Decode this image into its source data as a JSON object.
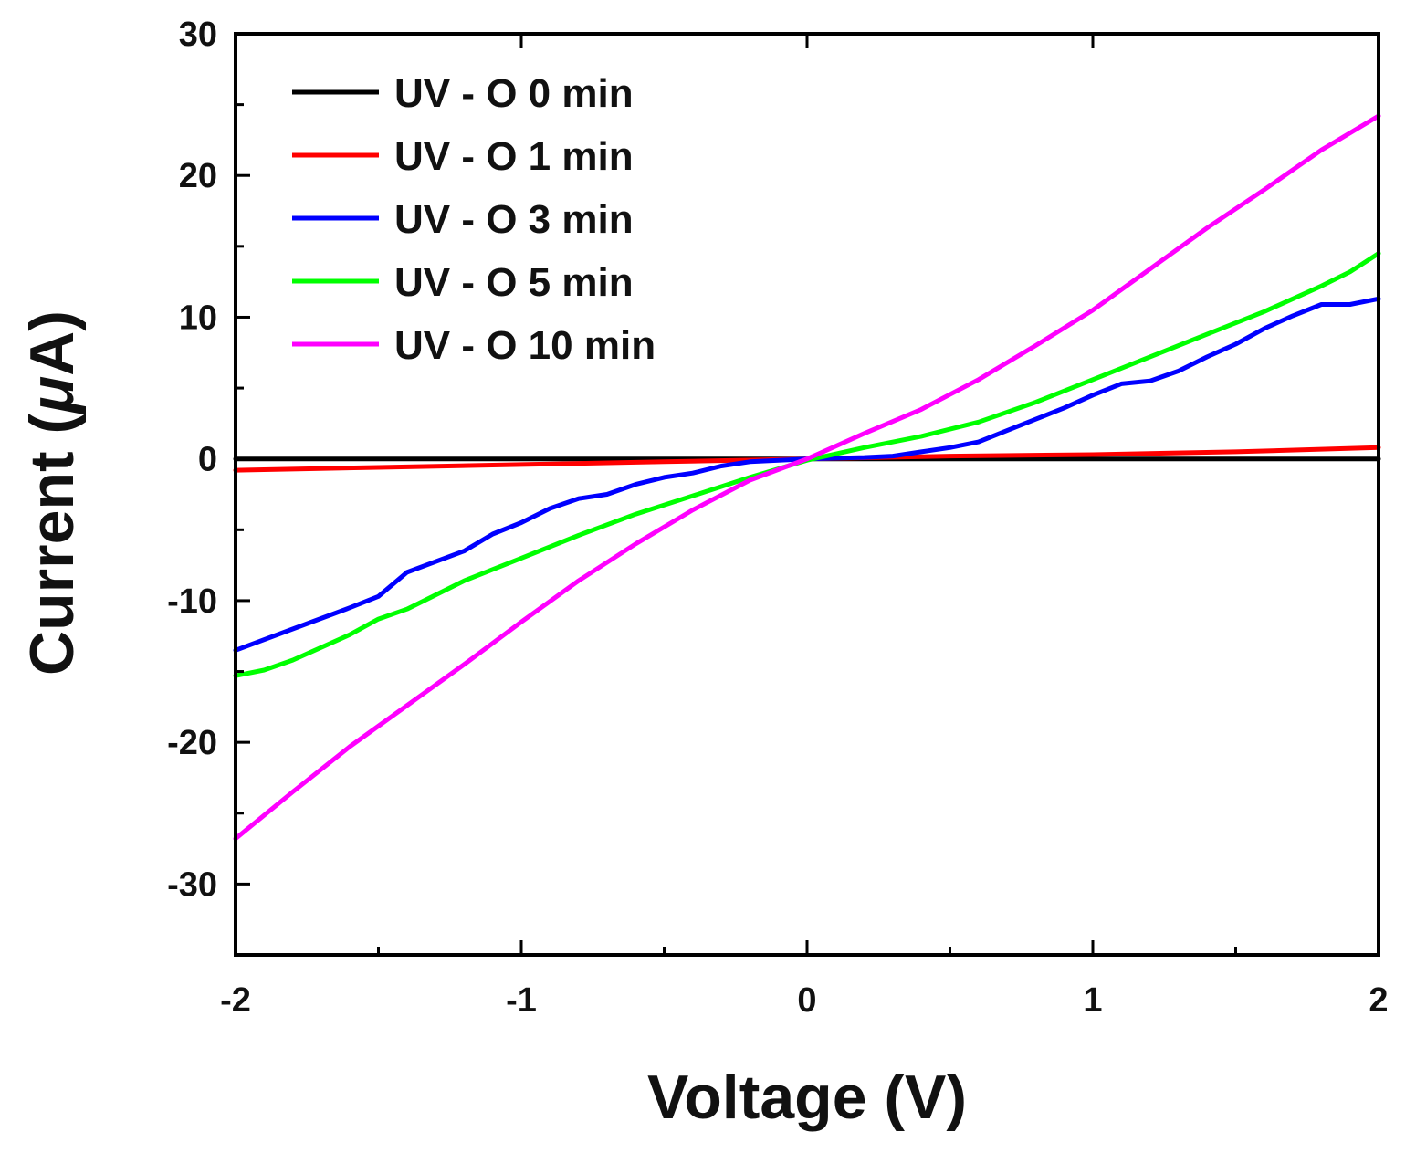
{
  "chart_data": {
    "type": "line",
    "title": "",
    "xlabel": "Voltage (V)",
    "ylabel_prefix": "Current (",
    "ylabel_mu": "μ",
    "ylabel_suffix": "A)",
    "xlim": [
      -2,
      2
    ],
    "ylim": [
      -35,
      30
    ],
    "xticks": [
      -2,
      -1,
      0,
      1,
      2
    ],
    "yticks": [
      -30,
      -20,
      -10,
      0,
      10,
      20,
      30
    ],
    "grid": false,
    "legend_position": "top-left",
    "series": [
      {
        "name": "UV - O 0 min",
        "color": "#000000",
        "points": [
          [
            -2,
            0.0
          ],
          [
            2,
            0.0
          ]
        ]
      },
      {
        "name": "UV - O 1 min",
        "color": "#ff0000",
        "points": [
          [
            -2,
            -0.8
          ],
          [
            -1.5,
            -0.6
          ],
          [
            -1,
            -0.4
          ],
          [
            -0.5,
            -0.2
          ],
          [
            0,
            0.0
          ],
          [
            0.5,
            0.2
          ],
          [
            1,
            0.3
          ],
          [
            1.5,
            0.5
          ],
          [
            2,
            0.8
          ]
        ]
      },
      {
        "name": "UV - O 3 min",
        "color": "#0000ff",
        "points": [
          [
            -2,
            -13.5
          ],
          [
            -1.8,
            -12.0
          ],
          [
            -1.6,
            -10.5
          ],
          [
            -1.5,
            -9.7
          ],
          [
            -1.4,
            -8.0
          ],
          [
            -1.2,
            -6.5
          ],
          [
            -1.1,
            -5.3
          ],
          [
            -1,
            -4.5
          ],
          [
            -0.9,
            -3.5
          ],
          [
            -0.8,
            -2.8
          ],
          [
            -0.7,
            -2.5
          ],
          [
            -0.6,
            -1.8
          ],
          [
            -0.5,
            -1.3
          ],
          [
            -0.4,
            -1.0
          ],
          [
            -0.3,
            -0.5
          ],
          [
            -0.2,
            -0.2
          ],
          [
            -0.1,
            -0.1
          ],
          [
            0,
            0.0
          ],
          [
            0.1,
            0.05
          ],
          [
            0.2,
            0.1
          ],
          [
            0.3,
            0.2
          ],
          [
            0.4,
            0.5
          ],
          [
            0.5,
            0.8
          ],
          [
            0.6,
            1.2
          ],
          [
            0.7,
            2.0
          ],
          [
            0.8,
            2.8
          ],
          [
            0.9,
            3.6
          ],
          [
            1,
            4.5
          ],
          [
            1.1,
            5.3
          ],
          [
            1.2,
            5.5
          ],
          [
            1.3,
            6.2
          ],
          [
            1.4,
            7.2
          ],
          [
            1.5,
            8.1
          ],
          [
            1.6,
            9.2
          ],
          [
            1.7,
            10.1
          ],
          [
            1.8,
            10.9
          ],
          [
            1.9,
            10.9
          ],
          [
            2,
            11.3
          ]
        ]
      },
      {
        "name": "UV - O 5 min",
        "color": "#00ff00",
        "points": [
          [
            -2,
            -15.3
          ],
          [
            -1.9,
            -14.9
          ],
          [
            -1.8,
            -14.2
          ],
          [
            -1.6,
            -12.4
          ],
          [
            -1.5,
            -11.3
          ],
          [
            -1.4,
            -10.6
          ],
          [
            -1.2,
            -8.6
          ],
          [
            -1,
            -7.0
          ],
          [
            -0.8,
            -5.4
          ],
          [
            -0.6,
            -3.9
          ],
          [
            -0.4,
            -2.6
          ],
          [
            -0.2,
            -1.3
          ],
          [
            0,
            -0.1
          ],
          [
            0.2,
            0.8
          ],
          [
            0.4,
            1.6
          ],
          [
            0.6,
            2.6
          ],
          [
            0.8,
            4.0
          ],
          [
            1,
            5.6
          ],
          [
            1.2,
            7.2
          ],
          [
            1.4,
            8.8
          ],
          [
            1.6,
            10.4
          ],
          [
            1.8,
            12.2
          ],
          [
            1.9,
            13.2
          ],
          [
            2,
            14.5
          ]
        ]
      },
      {
        "name": "UV - O 10 min",
        "color": "#ff00ff",
        "points": [
          [
            -2,
            -26.8
          ],
          [
            -1.8,
            -23.5
          ],
          [
            -1.6,
            -20.3
          ],
          [
            -1.4,
            -17.4
          ],
          [
            -1.2,
            -14.5
          ],
          [
            -1,
            -11.5
          ],
          [
            -0.8,
            -8.6
          ],
          [
            -0.6,
            -6.0
          ],
          [
            -0.4,
            -3.6
          ],
          [
            -0.2,
            -1.5
          ],
          [
            0,
            0.0
          ],
          [
            0.2,
            1.8
          ],
          [
            0.4,
            3.5
          ],
          [
            0.6,
            5.6
          ],
          [
            0.8,
            8.0
          ],
          [
            1,
            10.5
          ],
          [
            1.2,
            13.4
          ],
          [
            1.4,
            16.3
          ],
          [
            1.6,
            19.0
          ],
          [
            1.8,
            21.8
          ],
          [
            2,
            24.2
          ]
        ]
      }
    ]
  }
}
